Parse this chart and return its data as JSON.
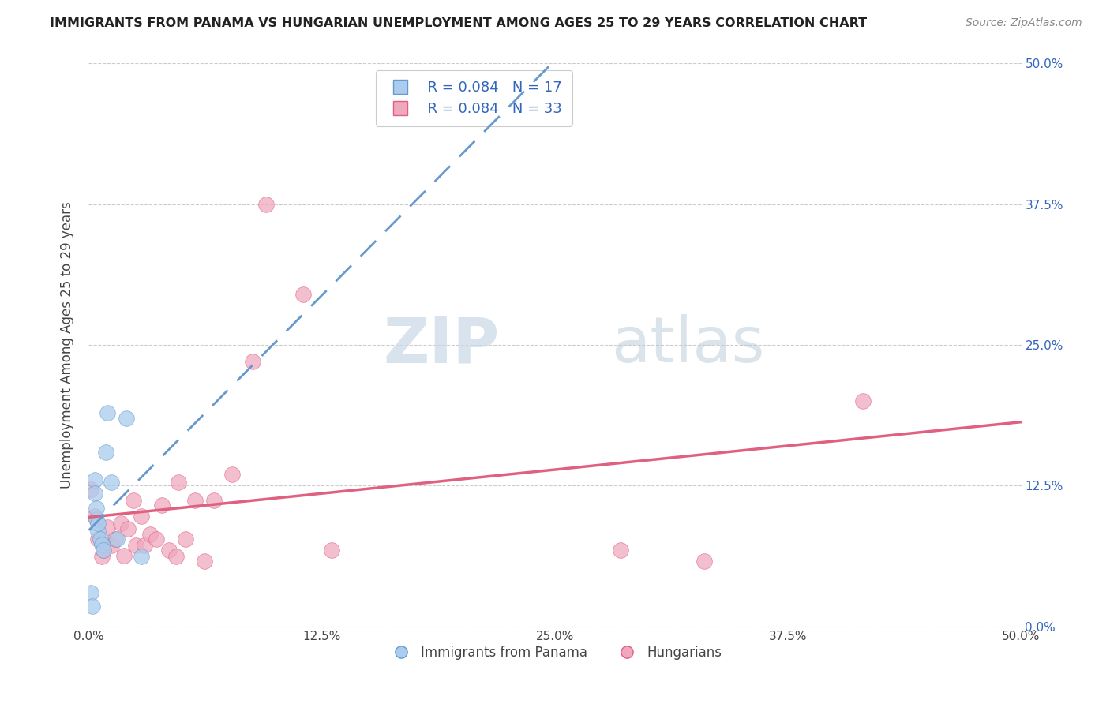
{
  "title": "IMMIGRANTS FROM PANAMA VS HUNGARIAN UNEMPLOYMENT AMONG AGES 25 TO 29 YEARS CORRELATION CHART",
  "source": "Source: ZipAtlas.com",
  "xlim": [
    0.0,
    0.5
  ],
  "ylim": [
    0.0,
    0.5
  ],
  "panama_color": "#aaccee",
  "hungarian_color": "#f0a8be",
  "panama_line_color": "#6699cc",
  "hungarian_line_color": "#e06080",
  "panama_R": "0.084",
  "panama_N": "17",
  "hungarian_R": "0.084",
  "hungarian_N": "33",
  "panama_points_x": [
    0.001,
    0.002,
    0.003,
    0.003,
    0.004,
    0.004,
    0.005,
    0.005,
    0.006,
    0.007,
    0.008,
    0.009,
    0.01,
    0.012,
    0.015,
    0.02,
    0.028
  ],
  "panama_points_y": [
    0.03,
    0.018,
    0.13,
    0.118,
    0.095,
    0.105,
    0.085,
    0.092,
    0.078,
    0.073,
    0.068,
    0.155,
    0.19,
    0.128,
    0.078,
    0.185,
    0.062
  ],
  "hungarian_points_x": [
    0.001,
    0.003,
    0.005,
    0.007,
    0.008,
    0.01,
    0.012,
    0.014,
    0.017,
    0.019,
    0.021,
    0.024,
    0.025,
    0.028,
    0.03,
    0.033,
    0.036,
    0.039,
    0.043,
    0.047,
    0.048,
    0.052,
    0.057,
    0.062,
    0.067,
    0.077,
    0.088,
    0.095,
    0.115,
    0.13,
    0.285,
    0.33,
    0.415
  ],
  "hungarian_points_y": [
    0.122,
    0.098,
    0.078,
    0.062,
    0.068,
    0.088,
    0.072,
    0.078,
    0.092,
    0.063,
    0.087,
    0.112,
    0.072,
    0.098,
    0.072,
    0.082,
    0.078,
    0.108,
    0.068,
    0.062,
    0.128,
    0.078,
    0.112,
    0.058,
    0.112,
    0.135,
    0.235,
    0.375,
    0.295,
    0.068,
    0.068,
    0.058,
    0.2
  ],
  "watermark_zip": "ZIP",
  "watermark_atlas": "atlas",
  "ylabel": "Unemployment Among Ages 25 to 29 years",
  "legend_label_panama": "Immigrants from Panama",
  "legend_label_hungarian": "Hungarians",
  "background_color": "#ffffff",
  "grid_color": "#cccccc",
  "tick_color_blue": "#3366bb",
  "tick_color_dark": "#444444"
}
